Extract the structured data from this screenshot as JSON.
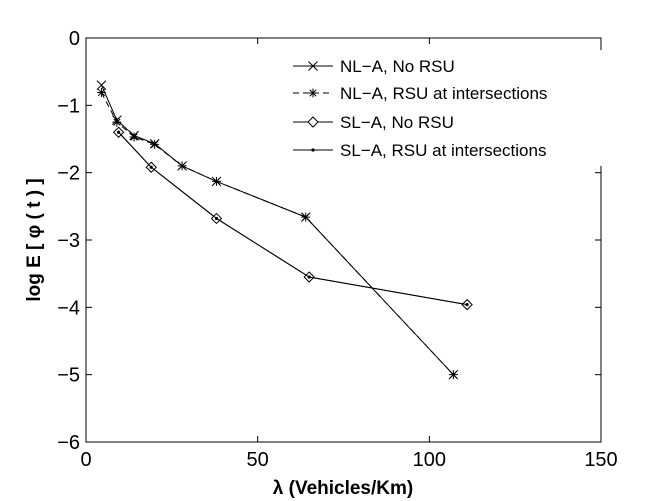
{
  "chart_data": {
    "type": "line",
    "title": "",
    "xlabel": "λ (Vehicles/Km)",
    "ylabel": "log E [ φ ( t ) ]",
    "xlim": [
      0,
      150
    ],
    "ylim": [
      -6,
      0
    ],
    "xticks": [
      0,
      50,
      100,
      150
    ],
    "yticks": [
      0,
      -1,
      -2,
      -3,
      -4,
      -5,
      -6
    ],
    "grid": false,
    "legend_position": "top-right",
    "series": [
      {
        "name": "NL−A, No RSU",
        "marker": "x",
        "dash": "solid",
        "x": [
          4.5,
          9,
          14,
          20,
          28,
          38,
          64,
          107
        ],
        "y": [
          -0.7,
          -1.22,
          -1.45,
          -1.57,
          -1.9,
          -2.13,
          -2.66,
          -5.0
        ]
      },
      {
        "name": "NL−A, RSU at intersections",
        "marker": "star",
        "dash": "dashed",
        "x": [
          4.5,
          9,
          14,
          20,
          28,
          38,
          64,
          107
        ],
        "y": [
          -0.81,
          -1.25,
          -1.47,
          -1.58,
          -1.9,
          -2.13,
          -2.66,
          -5.0
        ]
      },
      {
        "name": "SL−A, No RSU",
        "marker": "diamond",
        "dash": "solid",
        "x": [
          9.5,
          19,
          38,
          65,
          111
        ],
        "y": [
          -1.4,
          -1.92,
          -2.68,
          -3.55,
          -3.96
        ]
      },
      {
        "name": "SL−A, RSU at intersections",
        "marker": "dot",
        "dash": "solid",
        "x": [
          9.5,
          19,
          38,
          65,
          111
        ],
        "y": [
          -1.4,
          -1.92,
          -2.68,
          -3.55,
          -3.96
        ]
      }
    ]
  }
}
